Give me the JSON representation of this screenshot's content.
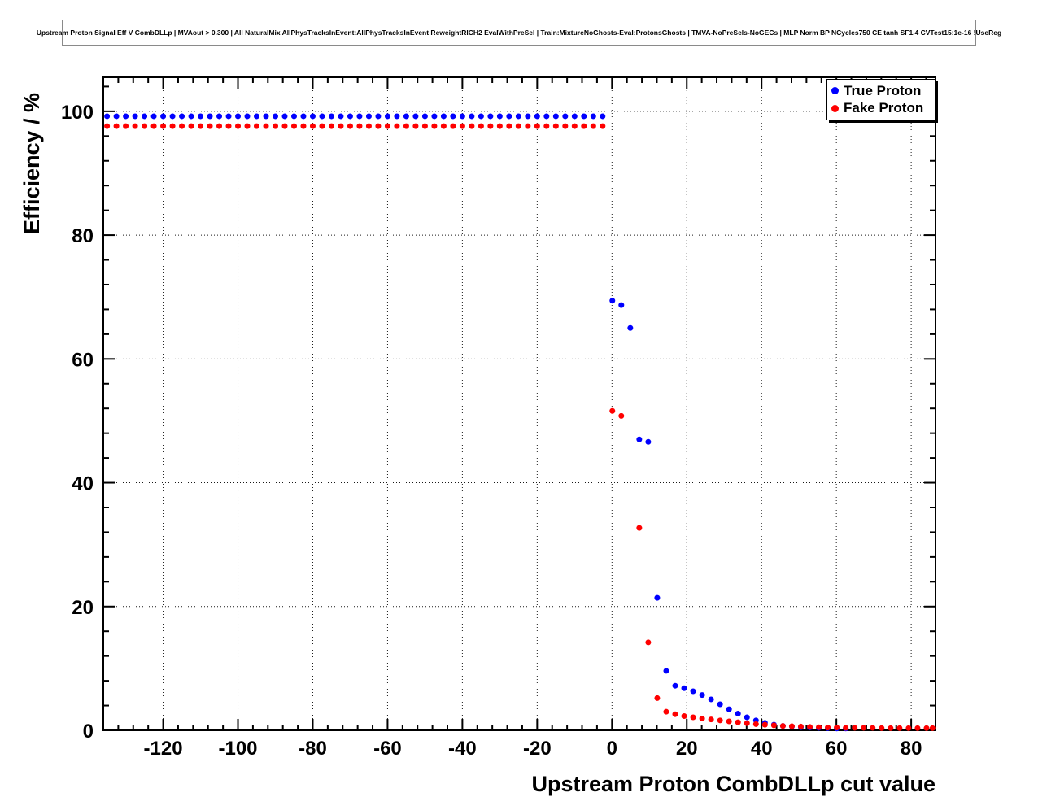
{
  "legend": {
    "items": [
      {
        "label": "True Proton",
        "color": "#0000ff"
      },
      {
        "label": "Fake Proton",
        "color": "#ff0000"
      }
    ]
  },
  "chart_data": {
    "type": "scatter",
    "title": "Upstream Proton Signal Eff V CombDLLp | MVAout > 0.300 | All NaturalMix AllPhysTracksInEvent:AllPhysTracksInEvent ReweightRICH2 EvalWithPreSel | Train:MixtureNoGhosts-Eval:ProtonsGhosts | TMVA-NoPreSels-NoGECs | MLP Norm BP NCycles750 CE tanh SF1.4 CVTest15:1e-16 !UseReg",
    "xlabel": "Upstream Proton CombDLLp cut value",
    "ylabel": "Efficiency / %",
    "xlim": [
      -136,
      86.5
    ],
    "ylim": [
      0,
      105.5
    ],
    "x_major_ticks": [
      -120,
      -100,
      -80,
      -60,
      -40,
      -20,
      0,
      20,
      40,
      60,
      80
    ],
    "y_major_ticks": [
      0,
      20,
      40,
      60,
      80,
      100
    ],
    "x_minor_step": 4,
    "y_minor_step": 4,
    "grid_style": "dotted",
    "legend_position": "top-right",
    "marker": "filled-circle",
    "series": [
      {
        "name": "True Proton",
        "color": "#0000ff",
        "points": [
          [
            -135,
            99.2
          ],
          [
            -132.5,
            99.2
          ],
          [
            -130,
            99.2
          ],
          [
            -127.5,
            99.2
          ],
          [
            -125,
            99.2
          ],
          [
            -122.5,
            99.2
          ],
          [
            -120,
            99.2
          ],
          [
            -117.5,
            99.2
          ],
          [
            -115,
            99.2
          ],
          [
            -112.5,
            99.2
          ],
          [
            -110,
            99.2
          ],
          [
            -107.5,
            99.2
          ],
          [
            -105,
            99.2
          ],
          [
            -102.5,
            99.2
          ],
          [
            -100,
            99.2
          ],
          [
            -97.5,
            99.2
          ],
          [
            -95,
            99.2
          ],
          [
            -92.5,
            99.2
          ],
          [
            -90,
            99.2
          ],
          [
            -87.5,
            99.2
          ],
          [
            -85,
            99.2
          ],
          [
            -82.5,
            99.2
          ],
          [
            -80,
            99.2
          ],
          [
            -77.5,
            99.2
          ],
          [
            -75,
            99.2
          ],
          [
            -72.5,
            99.2
          ],
          [
            -70,
            99.2
          ],
          [
            -67.5,
            99.2
          ],
          [
            -65,
            99.2
          ],
          [
            -62.5,
            99.2
          ],
          [
            -60,
            99.2
          ],
          [
            -57.5,
            99.2
          ],
          [
            -55,
            99.2
          ],
          [
            -52.5,
            99.2
          ],
          [
            -50,
            99.2
          ],
          [
            -47.5,
            99.2
          ],
          [
            -45,
            99.2
          ],
          [
            -42.5,
            99.2
          ],
          [
            -40,
            99.2
          ],
          [
            -37.5,
            99.2
          ],
          [
            -35,
            99.2
          ],
          [
            -32.5,
            99.2
          ],
          [
            -30,
            99.2
          ],
          [
            -27.5,
            99.2
          ],
          [
            -25,
            99.2
          ],
          [
            -22.5,
            99.2
          ],
          [
            -20,
            99.2
          ],
          [
            -17.5,
            99.2
          ],
          [
            -15,
            99.2
          ],
          [
            -12.5,
            99.2
          ],
          [
            -10,
            99.2
          ],
          [
            -7.5,
            99.2
          ],
          [
            -5,
            99.2
          ],
          [
            -2.5,
            99.2
          ],
          [
            0.1,
            69.4
          ],
          [
            2.5,
            68.7
          ],
          [
            4.9,
            65.0
          ],
          [
            7.3,
            47.0
          ],
          [
            9.7,
            46.6
          ],
          [
            12.1,
            21.4
          ],
          [
            14.5,
            9.6
          ],
          [
            16.9,
            7.2
          ],
          [
            19.3,
            6.8
          ],
          [
            21.7,
            6.3
          ],
          [
            24.1,
            5.7
          ],
          [
            26.5,
            5.0
          ],
          [
            28.9,
            4.2
          ],
          [
            31.3,
            3.4
          ],
          [
            33.7,
            2.7
          ],
          [
            36.1,
            2.1
          ],
          [
            38.5,
            1.6
          ],
          [
            40.9,
            1.2
          ],
          [
            43.3,
            0.9
          ],
          [
            45.7,
            0.7
          ],
          [
            48.1,
            0.6
          ],
          [
            50.5,
            0.5
          ],
          [
            52.9,
            0.45
          ],
          [
            55.3,
            0.4
          ],
          [
            57.7,
            0.35
          ],
          [
            60.1,
            0.3
          ],
          [
            62.5,
            0.3
          ]
        ]
      },
      {
        "name": "Fake Proton",
        "color": "#ff0000",
        "points": [
          [
            -135,
            97.6
          ],
          [
            -132.5,
            97.6
          ],
          [
            -130,
            97.6
          ],
          [
            -127.5,
            97.6
          ],
          [
            -125,
            97.6
          ],
          [
            -122.5,
            97.6
          ],
          [
            -120,
            97.6
          ],
          [
            -117.5,
            97.6
          ],
          [
            -115,
            97.6
          ],
          [
            -112.5,
            97.6
          ],
          [
            -110,
            97.6
          ],
          [
            -107.5,
            97.6
          ],
          [
            -105,
            97.6
          ],
          [
            -102.5,
            97.6
          ],
          [
            -100,
            97.6
          ],
          [
            -97.5,
            97.6
          ],
          [
            -95,
            97.6
          ],
          [
            -92.5,
            97.6
          ],
          [
            -90,
            97.6
          ],
          [
            -87.5,
            97.6
          ],
          [
            -85,
            97.6
          ],
          [
            -82.5,
            97.6
          ],
          [
            -80,
            97.6
          ],
          [
            -77.5,
            97.6
          ],
          [
            -75,
            97.6
          ],
          [
            -72.5,
            97.6
          ],
          [
            -70,
            97.6
          ],
          [
            -67.5,
            97.6
          ],
          [
            -65,
            97.6
          ],
          [
            -62.5,
            97.6
          ],
          [
            -60,
            97.6
          ],
          [
            -57.5,
            97.6
          ],
          [
            -55,
            97.6
          ],
          [
            -52.5,
            97.6
          ],
          [
            -50,
            97.6
          ],
          [
            -47.5,
            97.6
          ],
          [
            -45,
            97.6
          ],
          [
            -42.5,
            97.6
          ],
          [
            -40,
            97.6
          ],
          [
            -37.5,
            97.6
          ],
          [
            -35,
            97.6
          ],
          [
            -32.5,
            97.6
          ],
          [
            -30,
            97.6
          ],
          [
            -27.5,
            97.6
          ],
          [
            -25,
            97.6
          ],
          [
            -22.5,
            97.6
          ],
          [
            -20,
            97.6
          ],
          [
            -17.5,
            97.6
          ],
          [
            -15,
            97.6
          ],
          [
            -12.5,
            97.6
          ],
          [
            -10,
            97.6
          ],
          [
            -7.5,
            97.6
          ],
          [
            -5,
            97.6
          ],
          [
            -2.5,
            97.6
          ],
          [
            0.1,
            51.6
          ],
          [
            2.5,
            50.8
          ],
          [
            7.3,
            32.7
          ],
          [
            9.7,
            14.2
          ],
          [
            12.1,
            5.2
          ],
          [
            14.5,
            3.0
          ],
          [
            16.9,
            2.6
          ],
          [
            19.3,
            2.3
          ],
          [
            21.7,
            2.1
          ],
          [
            24.1,
            1.9
          ],
          [
            26.5,
            1.75
          ],
          [
            28.9,
            1.6
          ],
          [
            31.3,
            1.45
          ],
          [
            33.7,
            1.3
          ],
          [
            36.1,
            1.15
          ],
          [
            38.5,
            1.0
          ],
          [
            40.9,
            0.9
          ],
          [
            43.3,
            0.8
          ],
          [
            45.7,
            0.7
          ],
          [
            48.1,
            0.65
          ],
          [
            50.5,
            0.6
          ],
          [
            52.9,
            0.55
          ],
          [
            55.3,
            0.5
          ],
          [
            57.7,
            0.45
          ],
          [
            60.1,
            0.45
          ],
          [
            62.5,
            0.4
          ],
          [
            64.9,
            0.4
          ],
          [
            67.3,
            0.4
          ],
          [
            69.7,
            0.4
          ],
          [
            72.1,
            0.35
          ],
          [
            74.5,
            0.35
          ],
          [
            76.9,
            0.35
          ],
          [
            79.3,
            0.35
          ],
          [
            81.7,
            0.35
          ],
          [
            84.1,
            0.35
          ],
          [
            85.7,
            0.35
          ]
        ]
      }
    ]
  }
}
